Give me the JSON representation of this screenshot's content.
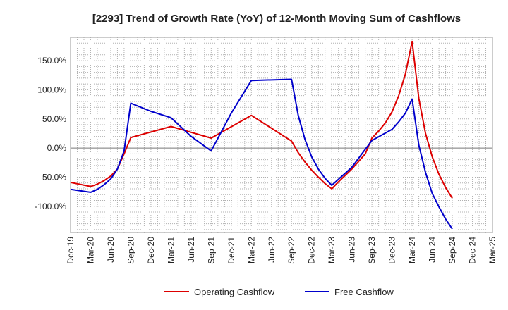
{
  "chart_data": {
    "type": "line",
    "title": "[2293]  Trend of Growth Rate (YoY) of 12-Month Moving Sum of Cashflows",
    "xlabel": "",
    "ylabel": "",
    "x_ticks": [
      "Dec-19",
      "Mar-20",
      "Jun-20",
      "Sep-20",
      "Dec-20",
      "Mar-21",
      "Jun-21",
      "Sep-21",
      "Dec-21",
      "Mar-22",
      "Jun-22",
      "Sep-22",
      "Dec-22",
      "Mar-23",
      "Jun-23",
      "Sep-23",
      "Dec-23",
      "Mar-24",
      "Jun-24",
      "Sep-24",
      "Dec-24",
      "Mar-25"
    ],
    "x_range": [
      "2019-12",
      "2025-03"
    ],
    "y_ticks": [
      150,
      100,
      50,
      0,
      -50,
      -100
    ],
    "y_tick_labels": [
      "150.0%",
      "100.0%",
      "50.0%",
      "0.0%",
      "-50.0%",
      "-100.0%"
    ],
    "ylim": [
      -145,
      190
    ],
    "grid": true,
    "legend_position": "bottom",
    "series": [
      {
        "name": "Operating Cashflow",
        "color": "#dd0000",
        "x": [
          "2019-12",
          "2020-03",
          "2020-04",
          "2020-05",
          "2020-06",
          "2020-07",
          "2020-08",
          "2020-09",
          "2021-03",
          "2021-09",
          "2022-03",
          "2022-09",
          "2022-10",
          "2022-11",
          "2022-12",
          "2023-01",
          "2023-02",
          "2023-03",
          "2023-04",
          "2023-05",
          "2023-06",
          "2023-07",
          "2023-08",
          "2023-09",
          "2023-10",
          "2023-11",
          "2023-12",
          "2024-01",
          "2024-02",
          "2024-03",
          "2024-04",
          "2024-05",
          "2024-06",
          "2024-07",
          "2024-08",
          "2024-09"
        ],
        "values": [
          -59,
          -66,
          -62,
          -56,
          -48,
          -36,
          -10,
          18,
          37,
          17,
          56,
          12,
          -8,
          -24,
          -38,
          -50,
          -61,
          -70,
          -58,
          -47,
          -36,
          -23,
          -10,
          17,
          29,
          43,
          62,
          90,
          127,
          183,
          85,
          25,
          -15,
          -45,
          -68,
          -86
        ]
      },
      {
        "name": "Free Cashflow",
        "color": "#0000cc",
        "x": [
          "2019-12",
          "2020-03",
          "2020-04",
          "2020-05",
          "2020-06",
          "2020-07",
          "2020-08",
          "2020-09",
          "2020-12",
          "2021-03",
          "2021-06",
          "2021-09",
          "2021-12",
          "2022-03",
          "2022-09",
          "2022-10",
          "2022-11",
          "2022-12",
          "2023-01",
          "2023-02",
          "2023-03",
          "2023-06",
          "2023-09",
          "2023-12",
          "2024-01",
          "2024-02",
          "2024-03",
          "2024-04",
          "2024-05",
          "2024-06",
          "2024-07",
          "2024-08",
          "2024-09"
        ],
        "values": [
          -71,
          -76,
          -71,
          -63,
          -53,
          -36,
          -5,
          77,
          63,
          52,
          20,
          -5,
          60,
          116,
          118,
          56,
          15,
          -15,
          -36,
          -52,
          -64,
          -33,
          13,
          32,
          45,
          60,
          84,
          5,
          -42,
          -78,
          -101,
          -122,
          -139
        ]
      }
    ]
  }
}
